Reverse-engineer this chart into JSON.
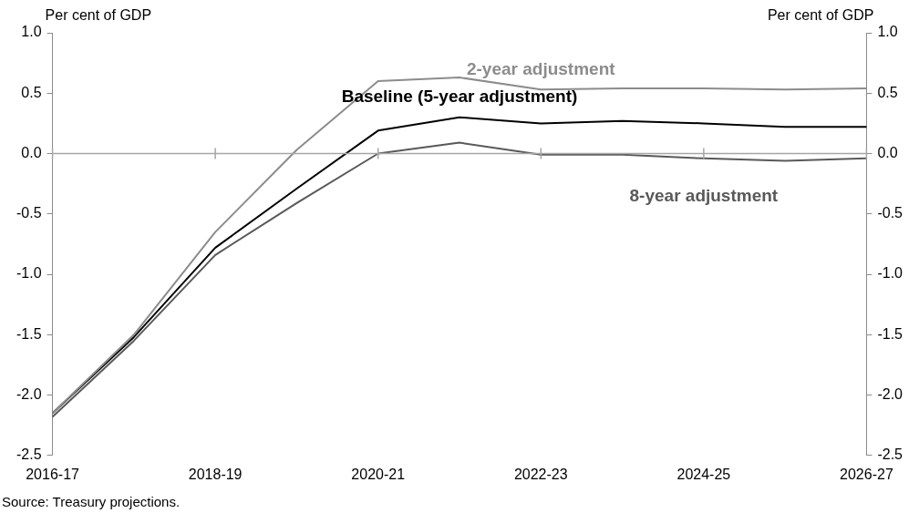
{
  "chart_data": {
    "type": "line",
    "ylabel": "Per cent of GDP",
    "y2label": "Per cent of GDP",
    "categories": [
      "2016-17",
      null,
      "2018-19",
      null,
      "2020-21",
      null,
      "2022-23",
      null,
      "2024-25",
      null,
      "2026-27"
    ],
    "series": [
      {
        "name": "2-year adjustment",
        "color": "#8c8c8c",
        "values": [
          -2.15,
          -1.5,
          -0.65,
          0.03,
          0.6,
          0.63,
          0.53,
          0.54,
          0.54,
          0.53,
          0.54
        ]
      },
      {
        "name": "Baseline (5-year adjustment)",
        "color": "#000000",
        "values": [
          -2.15,
          -1.52,
          -0.78,
          -0.29,
          0.19,
          0.3,
          0.25,
          0.27,
          0.25,
          0.22,
          0.22
        ]
      },
      {
        "name": "8-year adjustment",
        "color": "#595959",
        "values": [
          -2.18,
          -1.55,
          -0.84,
          -0.41,
          0.0,
          0.09,
          -0.01,
          -0.01,
          -0.04,
          -0.06,
          -0.04
        ]
      }
    ],
    "ylim": [
      -2.5,
      1.0
    ],
    "yticks": [
      {
        "value": -2.5,
        "label": "-2.5"
      },
      {
        "value": -2,
        "label": "-2.0"
      },
      {
        "value": -1.5,
        "label": "-1.5"
      },
      {
        "value": -1,
        "label": "-1.0"
      },
      {
        "value": -0.5,
        "label": "-0.5"
      },
      {
        "value": 0,
        "label": "0.0"
      },
      {
        "value": 0.5,
        "label": "0.5"
      },
      {
        "value": 1,
        "label": "1.0"
      }
    ],
    "y2lim": [
      -2.5,
      1.0
    ],
    "y2ticks": [
      {
        "value": -2.5,
        "label": "-2.5"
      },
      {
        "value": -2,
        "label": "-2.0"
      },
      {
        "value": -1.5,
        "label": "-1.5"
      },
      {
        "value": -1,
        "label": "-1.0"
      },
      {
        "value": -0.5,
        "label": "-0.5"
      },
      {
        "value": 0,
        "label": "0.0"
      },
      {
        "value": 0.5,
        "label": "0.5"
      },
      {
        "value": 1,
        "label": "1.0"
      }
    ],
    "ref_lines": [
      {
        "axis": "y",
        "value": 0,
        "color": "#a6a6a6"
      }
    ],
    "annotations": [
      "Source: Treasury projections."
    ],
    "grid": false,
    "legend": false,
    "marker": "none",
    "line_style": "solid"
  }
}
